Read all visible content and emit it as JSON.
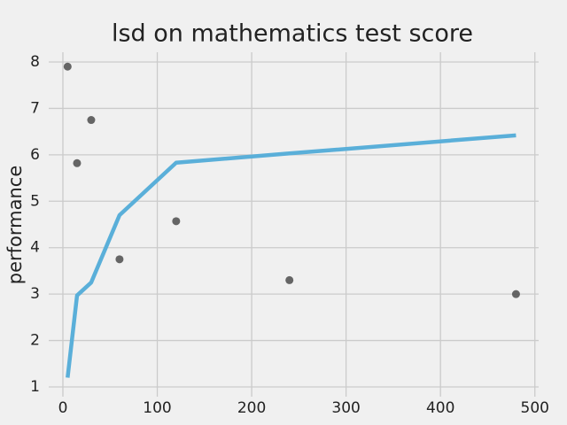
{
  "chart_data": {
    "type": "scatter_line",
    "title": "lsd on mathematics test score",
    "ylabel": "performance",
    "x": [
      5,
      15,
      30,
      60,
      120,
      240,
      480
    ],
    "series": [
      {
        "kind": "scatter",
        "color": "#555555",
        "values": [
          7.9,
          5.82,
          6.75,
          3.75,
          4.57,
          3.3,
          3.0
        ]
      },
      {
        "kind": "line",
        "color": "#5aafd9",
        "values": [
          1.2,
          2.97,
          3.25,
          4.7,
          5.83,
          6.03,
          6.42
        ]
      }
    ],
    "xlim": [
      -15,
      504
    ],
    "ylim": [
      0.79,
      8.21
    ],
    "xticks": [
      0,
      100,
      200,
      300,
      400,
      500
    ],
    "yticks": [
      1,
      2,
      3,
      4,
      5,
      6,
      7,
      8
    ],
    "grid": true
  }
}
